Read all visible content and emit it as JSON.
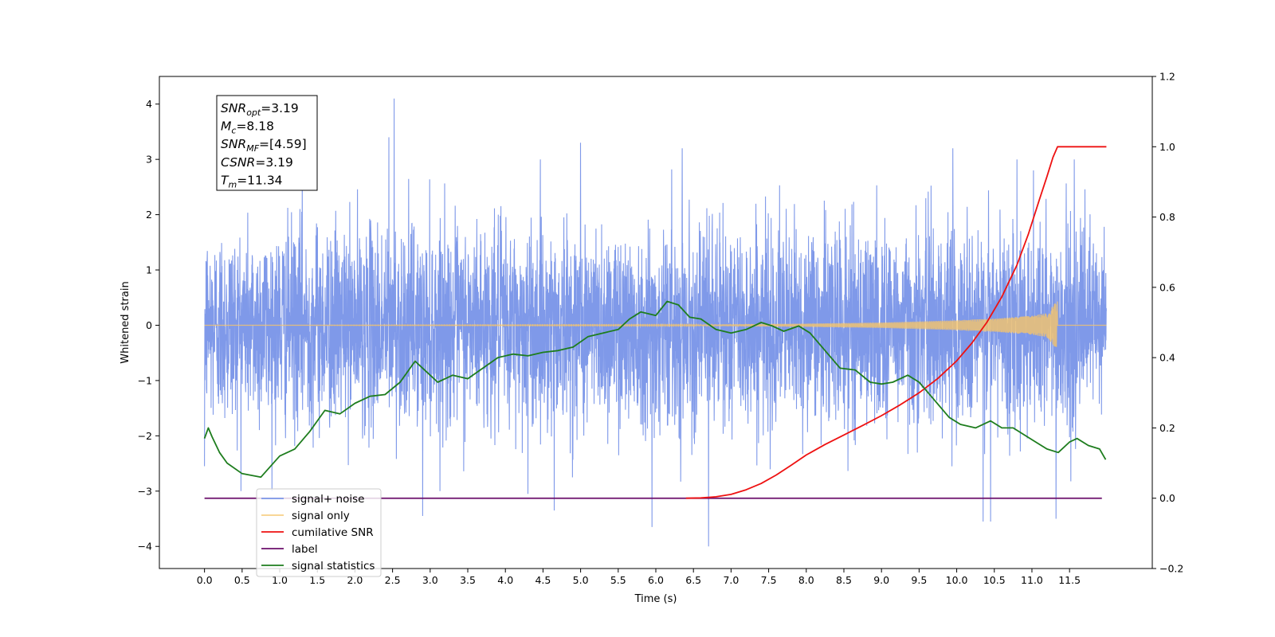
{
  "chart_data": {
    "type": "line",
    "xlabel": "Time (s)",
    "ylabel": "Whitened strain",
    "ylabel_right": "",
    "xlim": [
      -0.6,
      12.6
    ],
    "ylim": [
      -4.4,
      4.5
    ],
    "ylim_right": [
      -0.2,
      1.2
    ],
    "x_ticks": [
      0.0,
      0.5,
      1.0,
      1.5,
      2.0,
      2.5,
      3.0,
      3.5,
      4.0,
      4.5,
      5.0,
      5.5,
      6.0,
      6.5,
      7.0,
      7.5,
      8.0,
      8.5,
      9.0,
      9.5,
      10.0,
      10.5,
      11.0,
      11.5
    ],
    "x_tick_labels": [
      "0.0",
      "0.5",
      "1.0",
      "1.5",
      "2.0",
      "2.5",
      "3.0",
      "3.5",
      "4.0",
      "4.5",
      "5.0",
      "5.5",
      "6.0",
      "6.5",
      "7.0",
      "7.5",
      "8.0",
      "8.5",
      "9.0",
      "9.5",
      "10.0",
      "10.5",
      "11.0",
      "11.5"
    ],
    "y_ticks": [
      -4,
      -3,
      -2,
      -1,
      0,
      1,
      2,
      3,
      4
    ],
    "y_tick_labels": [
      "−4",
      "−3",
      "−2",
      "−1",
      "0",
      "1",
      "2",
      "3",
      "4"
    ],
    "y_right_ticks": [
      -0.2,
      0.0,
      0.2,
      0.4,
      0.6,
      0.8,
      1.0,
      1.2
    ],
    "y_right_tick_labels": [
      "−0.2",
      "0.0",
      "0.2",
      "0.4",
      "0.6",
      "0.8",
      "1.0",
      "1.2"
    ],
    "grid": false,
    "legend_placement": "lower-left",
    "annotation": {
      "lines": [
        {
          "sym": "SNR",
          "sub": "opt",
          "val": "=3.19"
        },
        {
          "sym": "M",
          "sub": "c",
          "val": "=8.18"
        },
        {
          "sym": "SNR",
          "sub": "MF",
          "val": "=[4.59]"
        },
        {
          "sym": "CSNR",
          "sub": "",
          "val": "=3.19"
        },
        {
          "sym": "T",
          "sub": "m",
          "val": "=11.34"
        }
      ]
    },
    "series": [
      {
        "name": "signal+ noise",
        "color": "#7b96e8",
        "axis": "left",
        "style": "noise",
        "x_range": [
          0.0,
          11.99
        ],
        "typical_envelope": [
          -1.4,
          1.4
        ],
        "peaks": [
          {
            "x": 2.52,
            "y": 4.1
          },
          {
            "x": 2.45,
            "y": 3.4
          },
          {
            "x": 5.0,
            "y": 3.3
          },
          {
            "x": 6.35,
            "y": 3.2
          },
          {
            "x": 9.95,
            "y": 3.2
          },
          {
            "x": 10.8,
            "y": 3.0
          },
          {
            "x": 1.3,
            "y": 2.9
          },
          {
            "x": 11.02,
            "y": 2.8
          },
          {
            "x": 2.9,
            "y": -3.45
          },
          {
            "x": 5.95,
            "y": -3.65
          },
          {
            "x": 6.7,
            "y": -4.0
          },
          {
            "x": 10.35,
            "y": -3.55
          },
          {
            "x": 10.45,
            "y": -3.55
          },
          {
            "x": 11.32,
            "y": -3.5
          },
          {
            "x": 4.65,
            "y": -3.35
          },
          {
            "x": 4.3,
            "y": -3.05
          },
          {
            "x": 0.0,
            "y": -2.55
          }
        ]
      },
      {
        "name": "signal only",
        "color": "#f6c46a",
        "axis": "left",
        "style": "chirp",
        "x_range": [
          0.0,
          11.99
        ],
        "merger_time": 11.34,
        "amplitude_envelope": [
          [
            6.5,
            0.01
          ],
          [
            8.0,
            0.03
          ],
          [
            9.0,
            0.05
          ],
          [
            10.0,
            0.09
          ],
          [
            10.5,
            0.12
          ],
          [
            11.0,
            0.17
          ],
          [
            11.2,
            0.22
          ],
          [
            11.34,
            0.45
          ]
        ]
      },
      {
        "name": "cumilative SNR",
        "color": "#ee1111",
        "axis": "right",
        "x": [
          6.4,
          6.6,
          6.8,
          7.0,
          7.2,
          7.4,
          7.6,
          7.8,
          8.0,
          8.25,
          8.5,
          8.75,
          9.0,
          9.25,
          9.5,
          9.75,
          10.0,
          10.2,
          10.4,
          10.6,
          10.8,
          10.95,
          11.1,
          11.2,
          11.28,
          11.34,
          11.99
        ],
        "values": [
          0.0,
          0.001,
          0.004,
          0.011,
          0.024,
          0.042,
          0.066,
          0.094,
          0.123,
          0.153,
          0.18,
          0.207,
          0.235,
          0.266,
          0.3,
          0.341,
          0.391,
          0.441,
          0.5,
          0.573,
          0.663,
          0.75,
          0.85,
          0.915,
          0.97,
          1.0,
          1.0
        ]
      },
      {
        "name": "label",
        "color": "#6b0f6b",
        "axis": "right",
        "x": [
          0.0,
          11.93
        ],
        "values": [
          0.0,
          0.0
        ]
      },
      {
        "name": "signal statistics",
        "color": "#1e7d1e",
        "axis": "right",
        "x": [
          0.0,
          0.05,
          0.1,
          0.2,
          0.3,
          0.5,
          0.75,
          1.0,
          1.2,
          1.4,
          1.5,
          1.6,
          1.8,
          2.0,
          2.2,
          2.4,
          2.6,
          2.8,
          2.95,
          3.1,
          3.3,
          3.5,
          3.7,
          3.9,
          4.1,
          4.3,
          4.5,
          4.7,
          4.9,
          5.1,
          5.3,
          5.5,
          5.65,
          5.8,
          6.0,
          6.15,
          6.3,
          6.45,
          6.6,
          6.8,
          7.0,
          7.2,
          7.4,
          7.55,
          7.7,
          7.9,
          8.05,
          8.25,
          8.45,
          8.65,
          8.85,
          9.0,
          9.15,
          9.35,
          9.5,
          9.7,
          9.9,
          10.05,
          10.25,
          10.45,
          10.6,
          10.75,
          10.9,
          11.05,
          11.2,
          11.35,
          11.5,
          11.6,
          11.75,
          11.9,
          11.98
        ],
        "values": [
          0.17,
          0.2,
          0.175,
          0.13,
          0.1,
          0.07,
          0.06,
          0.12,
          0.14,
          0.19,
          0.22,
          0.25,
          0.24,
          0.27,
          0.29,
          0.295,
          0.33,
          0.39,
          0.36,
          0.33,
          0.35,
          0.34,
          0.37,
          0.4,
          0.41,
          0.405,
          0.415,
          0.42,
          0.43,
          0.46,
          0.47,
          0.48,
          0.51,
          0.53,
          0.52,
          0.56,
          0.55,
          0.515,
          0.51,
          0.48,
          0.47,
          0.48,
          0.5,
          0.49,
          0.475,
          0.49,
          0.47,
          0.42,
          0.37,
          0.365,
          0.33,
          0.325,
          0.33,
          0.35,
          0.33,
          0.28,
          0.23,
          0.21,
          0.2,
          0.22,
          0.2,
          0.2,
          0.18,
          0.16,
          0.14,
          0.13,
          0.16,
          0.17,
          0.15,
          0.14,
          0.11
        ]
      }
    ]
  }
}
